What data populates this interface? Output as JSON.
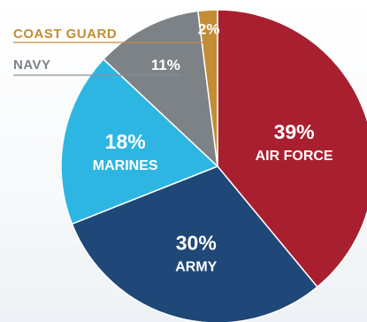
{
  "chart_data": {
    "type": "pie",
    "title": "",
    "slices": [
      {
        "name": "AIR FORCE",
        "value": 39,
        "label": "39%",
        "color": "#a8202f"
      },
      {
        "name": "ARMY",
        "value": 30,
        "label": "30%",
        "color": "#1f4777"
      },
      {
        "name": "MARINES",
        "value": 18,
        "label": "18%",
        "color": "#2eb6e3"
      },
      {
        "name": "NAVY",
        "value": 11,
        "label": "11%",
        "color": "#7d8287"
      },
      {
        "name": "COAST GUARD",
        "value": 2,
        "label": "2%",
        "color": "#c38d35"
      }
    ],
    "callouts": {
      "coast_guard": {
        "text": "COAST GUARD",
        "color": "#c38d35"
      },
      "navy": {
        "text": "NAVY",
        "color": "#7d8287"
      }
    }
  }
}
